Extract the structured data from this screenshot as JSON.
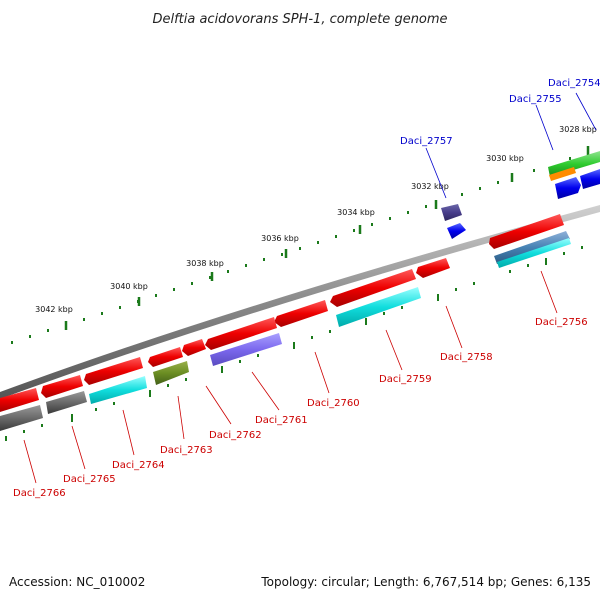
{
  "title": "Delftia acidovorans SPH-1, complete genome",
  "footer": {
    "accession": "Accession: NC_010002",
    "summary": "Topology: circular; Length: 6,767,514 bp; Genes: 6,135"
  },
  "colors": {
    "forward_label": "#0000cc",
    "reverse_label": "#cc0000",
    "backbone": "#8a8a8a",
    "tick": "#2e7d32"
  },
  "scale_ticks": [
    "3028 kbp",
    "3030 kbp",
    "3032 kbp",
    "3034 kbp",
    "3036 kbp",
    "3038 kbp",
    "3040 kbp",
    "3042 kbp"
  ],
  "gene_labels": {
    "forward": [
      "Daci_2754",
      "Daci_2755",
      "Daci_2757"
    ],
    "reverse": [
      "Daci_2756",
      "Daci_2758",
      "Daci_2759",
      "Daci_2760",
      "Daci_2761",
      "Daci_2762",
      "Daci_2763",
      "Daci_2764",
      "Daci_2765",
      "Daci_2766"
    ]
  }
}
